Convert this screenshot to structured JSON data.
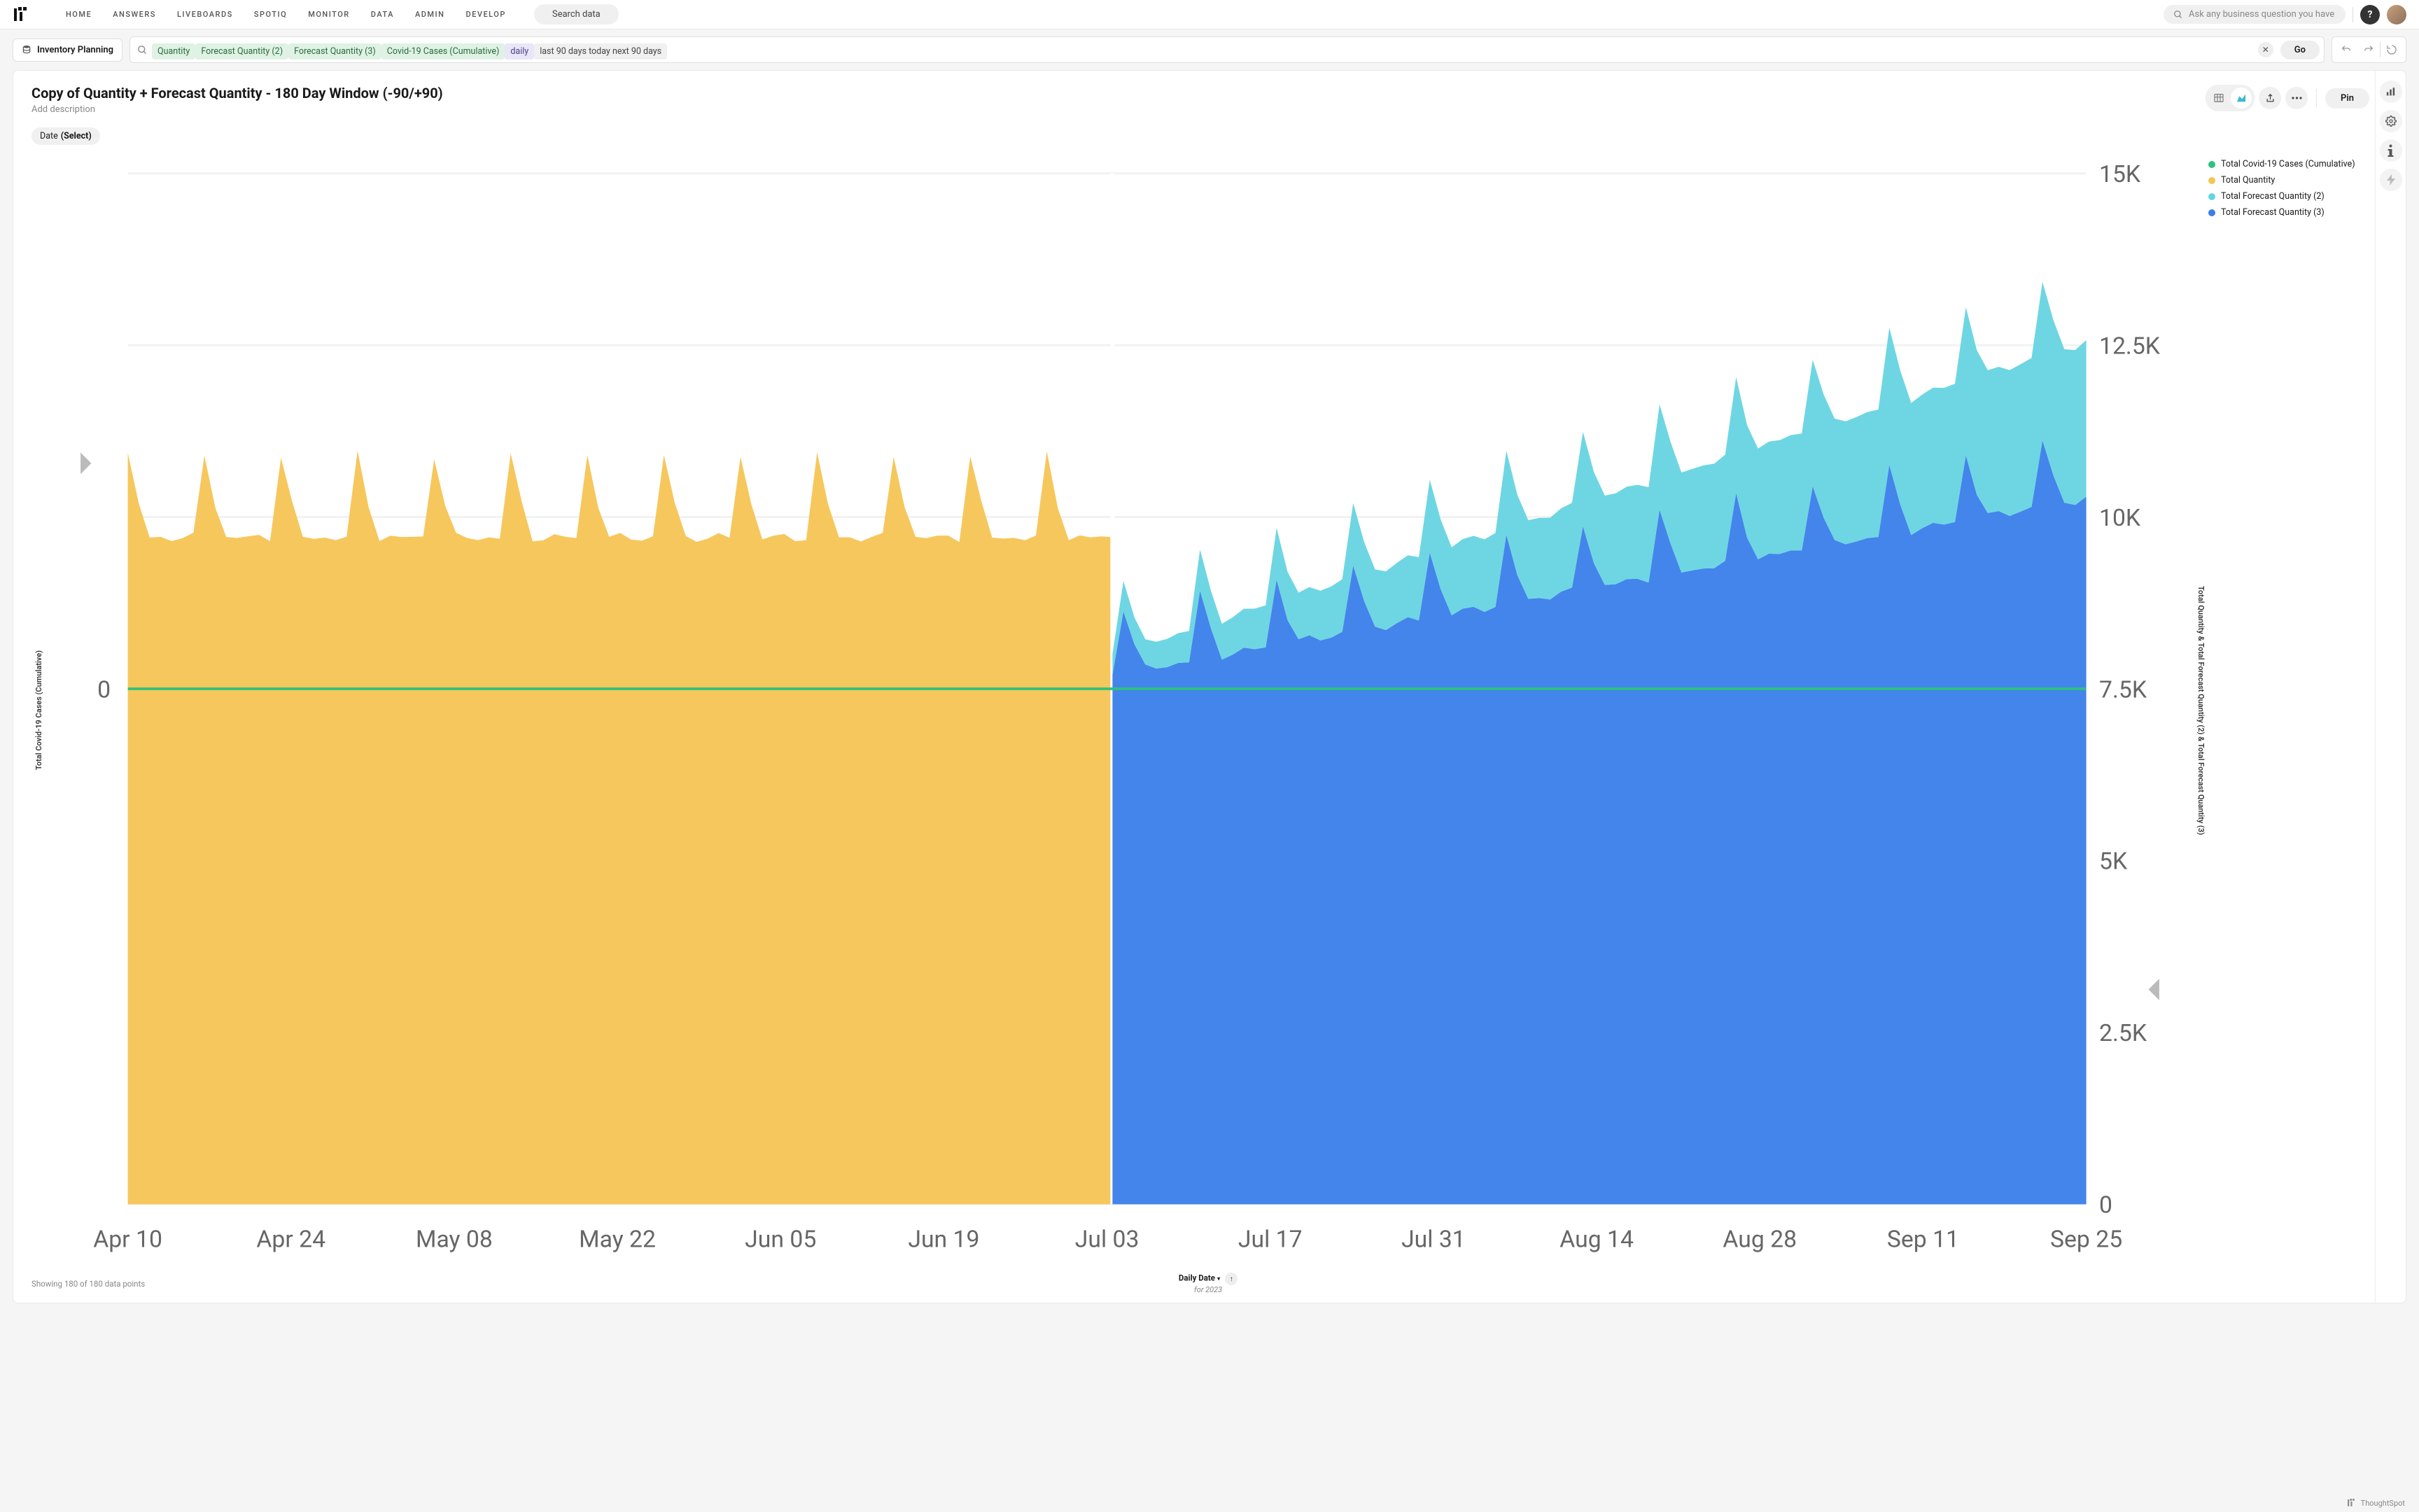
{
  "nav": {
    "links": [
      "HOME",
      "ANSWERS",
      "LIVEBOARDS",
      "SPOTIQ",
      "MONITOR",
      "DATA",
      "ADMIN",
      "DEVELOP"
    ],
    "search_data_label": "Search data",
    "global_search_placeholder": "Ask any business question you have",
    "help_label": "?"
  },
  "datasource": {
    "label": "Inventory Planning"
  },
  "query": {
    "chips": [
      {
        "text": "Quantity",
        "kind": "measure"
      },
      {
        "text": "Forecast Quantity (2)",
        "kind": "measure"
      },
      {
        "text": "Forecast Quantity (3)",
        "kind": "measure"
      },
      {
        "text": "Covid-19 Cases (Cumulative)",
        "kind": "measure"
      },
      {
        "text": "daily",
        "kind": "attr"
      },
      {
        "text": "last 90 days today next 90 days",
        "kind": "plain"
      }
    ],
    "go_label": "Go"
  },
  "page": {
    "title": "Copy of Quantity + Forecast Quantity - 180 Day Window (-90/+90)",
    "subtitle": "Add description",
    "date_chip_label": "Date",
    "date_chip_value": "(Select)",
    "pin_label": "Pin"
  },
  "legend": [
    {
      "label": "Total Covid-19 Cases (Cumulative)",
      "color": "#2ec27e"
    },
    {
      "label": "Total Quantity",
      "color": "#f6c453"
    },
    {
      "label": "Total Forecast Quantity (2)",
      "color": "#66d4e0"
    },
    {
      "label": "Total Forecast Quantity (3)",
      "color": "#3a7eea"
    }
  ],
  "chart": {
    "type": "area",
    "background_color": "#ffffff",
    "grid_color": "#f2f2f2",
    "left_axis": {
      "label": "Total Covid-19 Cases (Cumulative)",
      "ticks": [
        {
          "v": 0,
          "t": "0"
        }
      ]
    },
    "right_axis": {
      "label": "Total Quantity & Total Forecast Quantity (2) & Total Forecast Quantity (3)",
      "min": 0,
      "max": 15000,
      "ticks": [
        {
          "v": 0,
          "t": "0"
        },
        {
          "v": 2500,
          "t": "2.5K"
        },
        {
          "v": 5000,
          "t": "5K"
        },
        {
          "v": 7500,
          "t": "7.5K"
        },
        {
          "v": 10000,
          "t": "10K"
        },
        {
          "v": 12500,
          "t": "12.5K"
        },
        {
          "v": 15000,
          "t": "15K"
        }
      ]
    },
    "x_ticks": [
      "Apr 10",
      "Apr 24",
      "May 08",
      "May 22",
      "Jun 05",
      "Jun 19",
      "Jul 03",
      "Jul 17",
      "Jul 31",
      "Aug 14",
      "Aug 28",
      "Sep 11",
      "Sep 25"
    ],
    "x_title": "Daily Date",
    "x_year": "for 2023",
    "colors": {
      "quantity": "#f6c453",
      "forecast2": "#66d4e0",
      "forecast3": "#3a7eea",
      "covid_line": "#2ec27e"
    },
    "n_points": 180,
    "split_index": 90,
    "quantity_base": 9700,
    "quantity_spike": 1200,
    "quantity_noise": 120,
    "forecast3_start": 7700,
    "forecast3_end": 10300,
    "forecast2_extra_start": 300,
    "forecast2_extra_end": 2300,
    "covid_zero_value": 0
  },
  "footer": {
    "datapoints": "Showing 180 of 180 data points",
    "brand": "ThoughtSpot"
  }
}
